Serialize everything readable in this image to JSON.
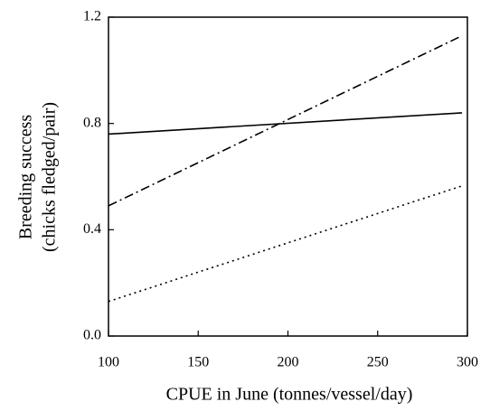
{
  "chart_data": {
    "type": "line",
    "xlabel": "CPUE in June (tonnes/vessel/day)",
    "ylabel": [
      "Breeding success",
      "(chicks fledged/pair)"
    ],
    "x": [
      100,
      297
    ],
    "series": [
      {
        "color": "#000000",
        "dash": "solid",
        "values": [
          0.76,
          0.84
        ]
      },
      {
        "color": "#000000",
        "dash": "dashdot",
        "values": [
          0.49,
          1.13
        ]
      },
      {
        "color": "#000000",
        "dash": "dotted",
        "values": [
          0.13,
          0.565
        ]
      }
    ],
    "xlim": [
      100,
      300
    ],
    "xticks": [
      100,
      150,
      200,
      250,
      300
    ],
    "ylim": [
      0,
      1.2
    ],
    "yticks": [
      {
        "value": 0,
        "label": "0.0"
      },
      0.4,
      0.8,
      1.2
    ],
    "grid": false
  }
}
